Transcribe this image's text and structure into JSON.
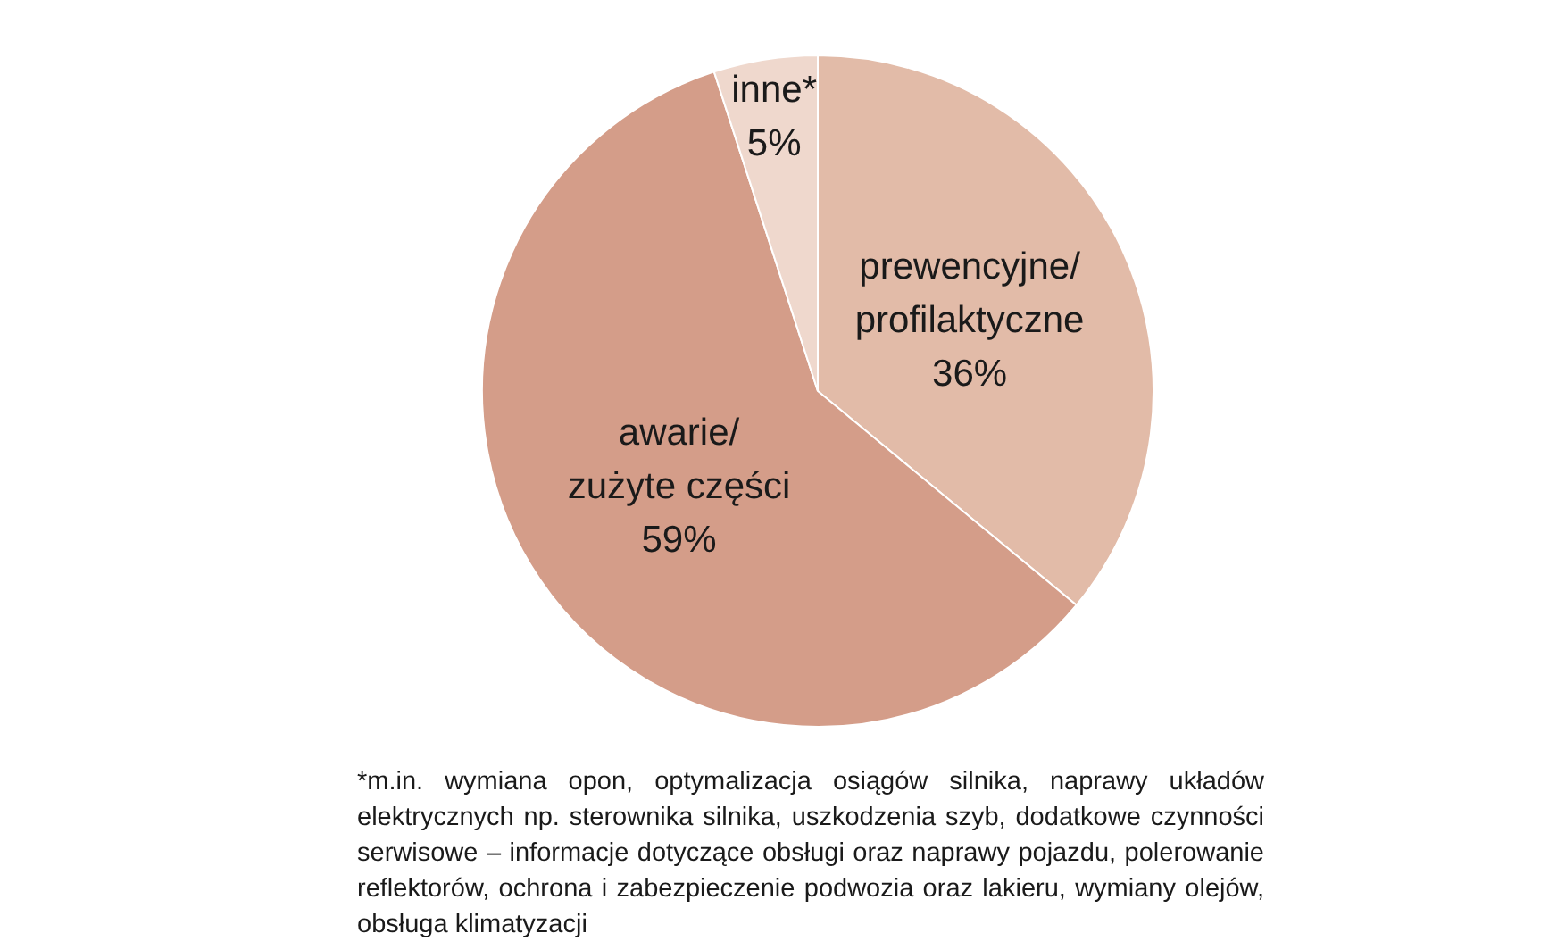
{
  "chart_data": {
    "type": "pie",
    "categories": [
      "prewencyjne/profilaktyczne",
      "awarie/zużyte części",
      "inne*"
    ],
    "values": [
      36,
      59,
      5
    ],
    "value_labels": [
      "36%",
      "59%",
      "5%"
    ],
    "colors": [
      "#e2bba8",
      "#d49d89",
      "#efd8cd"
    ],
    "annotations": [
      "*m.in. wymiana opon, optymalizacja osiągów silnika, naprawy układów elektrycznych np. sterownika silnika, uszkodzenia szyb, dodatkowe czynności serwisowe – informacje dotyczące obsługi oraz naprawy pojazdu, polerowanie reflektorów, ochrona i zabezpieczenie podwozia oraz lakieru, wymiany olejów, obsługa klimatyzacji"
    ]
  }
}
